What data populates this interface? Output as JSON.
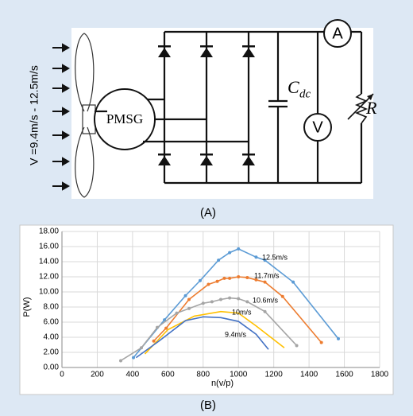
{
  "diagram": {
    "wind_label": "V =9.4m/s - 12.5m/s",
    "generator": "PMSG",
    "capacitor": "C",
    "capacitor_sub": "dc",
    "voltmeter": "V",
    "ammeter": "A",
    "resistor": "R",
    "panel_label": "(A)"
  },
  "chart_panel_label": "(B)",
  "chart_data": {
    "type": "line",
    "xlabel": "n(v/p)",
    "ylabel": "P(W)",
    "xlim": [
      0,
      1800
    ],
    "ylim": [
      0,
      18
    ],
    "xticks": [
      0,
      200,
      400,
      600,
      800,
      1000,
      1200,
      1400,
      1600,
      1800
    ],
    "yticks": [
      {
        "value": 0,
        "label": "0.00"
      },
      {
        "value": 2,
        "label": "2.00"
      },
      {
        "value": 4,
        "label": "4.00"
      },
      {
        "value": 6,
        "label": "6.00"
      },
      {
        "value": 8,
        "label": "8.00"
      },
      {
        "value": 10,
        "label": "10.00"
      },
      {
        "value": 12,
        "label": "12.00"
      },
      {
        "value": 14,
        "label": "14.00"
      },
      {
        "value": 16,
        "label": "16.00"
      },
      {
        "value": 18,
        "label": "18.00"
      }
    ],
    "grid": true,
    "series": [
      {
        "name": "12.5m/s",
        "color": "#5b9bd5",
        "markers": true,
        "x": [
          405,
          581,
          700,
          783,
          887,
          950,
          1000,
          1100,
          1150,
          1310,
          1566
        ],
        "values": [
          1.3,
          6.3,
          9.5,
          11.5,
          14.2,
          15.2,
          15.7,
          14.6,
          14.2,
          11.3,
          3.8
        ]
      },
      {
        "name": "11.7m/s",
        "color": "#ed7d31",
        "markers": true,
        "x": [
          520,
          590,
          720,
          830,
          880,
          920,
          950,
          1000,
          1050,
          1100,
          1150,
          1250,
          1470
        ],
        "values": [
          3.5,
          5.2,
          9.0,
          11.0,
          11.4,
          11.8,
          11.8,
          12.0,
          11.9,
          11.6,
          11.3,
          9.4,
          3.3
        ]
      },
      {
        "name": "10.6m/s",
        "color": "#a5a5a5",
        "markers": true,
        "x": [
          333,
          450,
          540,
          650,
          720,
          800,
          850,
          900,
          950,
          1000,
          1050,
          1150,
          1330
        ],
        "values": [
          0.9,
          2.6,
          5.3,
          7.2,
          7.8,
          8.5,
          8.7,
          9.0,
          9.2,
          9.1,
          8.7,
          7.4,
          2.9
        ]
      },
      {
        "name": "10m/s",
        "color": "#ffc000",
        "markers": false,
        "x": [
          470,
          600,
          750,
          900,
          1000,
          1100,
          1260
        ],
        "values": [
          1.8,
          5.0,
          6.8,
          7.4,
          7.2,
          5.5,
          2.6
        ]
      },
      {
        "name": "9.4m/s",
        "color": "#4472c4",
        "markers": false,
        "x": [
          420,
          550,
          700,
          800,
          900,
          1000,
          1100,
          1170
        ],
        "values": [
          1.3,
          3.5,
          6.2,
          6.7,
          6.6,
          6.1,
          4.4,
          2.4
        ]
      }
    ]
  }
}
